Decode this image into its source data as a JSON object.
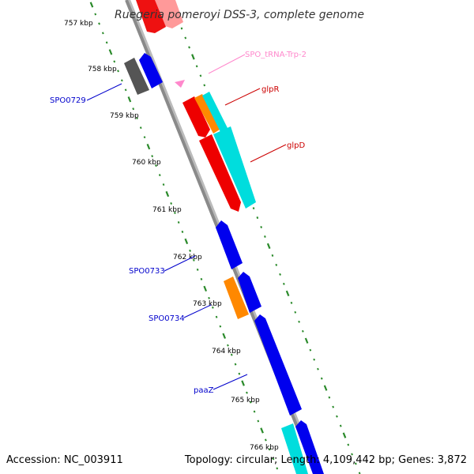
{
  "title": "Ruegeria pomeroyi DSS-3, complete genome",
  "footer": {
    "accession": "Accession: NC_003911",
    "summary": "Topology: circular; Length: 4,109,442 bp; Genes: 3,872"
  },
  "colors": {
    "backbone": "#888888",
    "tick": "#2a8a2a",
    "forward_cds": "#ff0000",
    "reverse_cds": "#0000ff",
    "trna": "#ff88cc",
    "cyan_feature": "#00dddd",
    "orange_feature": "#ff8800",
    "grey_feature": "#555555",
    "label_forward": "#cc0000",
    "label_reverse": "#0000cc",
    "label_trna": "#ff88cc"
  },
  "kbp_ticks": [
    {
      "label": "757 kbp"
    },
    {
      "label": "758 kbp"
    },
    {
      "label": "759 kbp"
    },
    {
      "label": "760 kbp"
    },
    {
      "label": "761 kbp"
    },
    {
      "label": "762 kbp"
    },
    {
      "label": "763 kbp"
    },
    {
      "label": "764 kbp"
    },
    {
      "label": "765 kbp"
    },
    {
      "label": "766 kbp"
    }
  ],
  "gene_labels": [
    {
      "name": "SPO_tRNA-Trp-2",
      "color": "label_trna"
    },
    {
      "name": "glpR",
      "color": "label_forward"
    },
    {
      "name": "glpD",
      "color": "label_forward"
    },
    {
      "name": "SPO0729",
      "color": "label_reverse"
    },
    {
      "name": "SPO0733",
      "color": "label_reverse"
    },
    {
      "name": "SPO0734",
      "color": "label_reverse"
    },
    {
      "name": "paaZ",
      "color": "label_reverse"
    }
  ]
}
